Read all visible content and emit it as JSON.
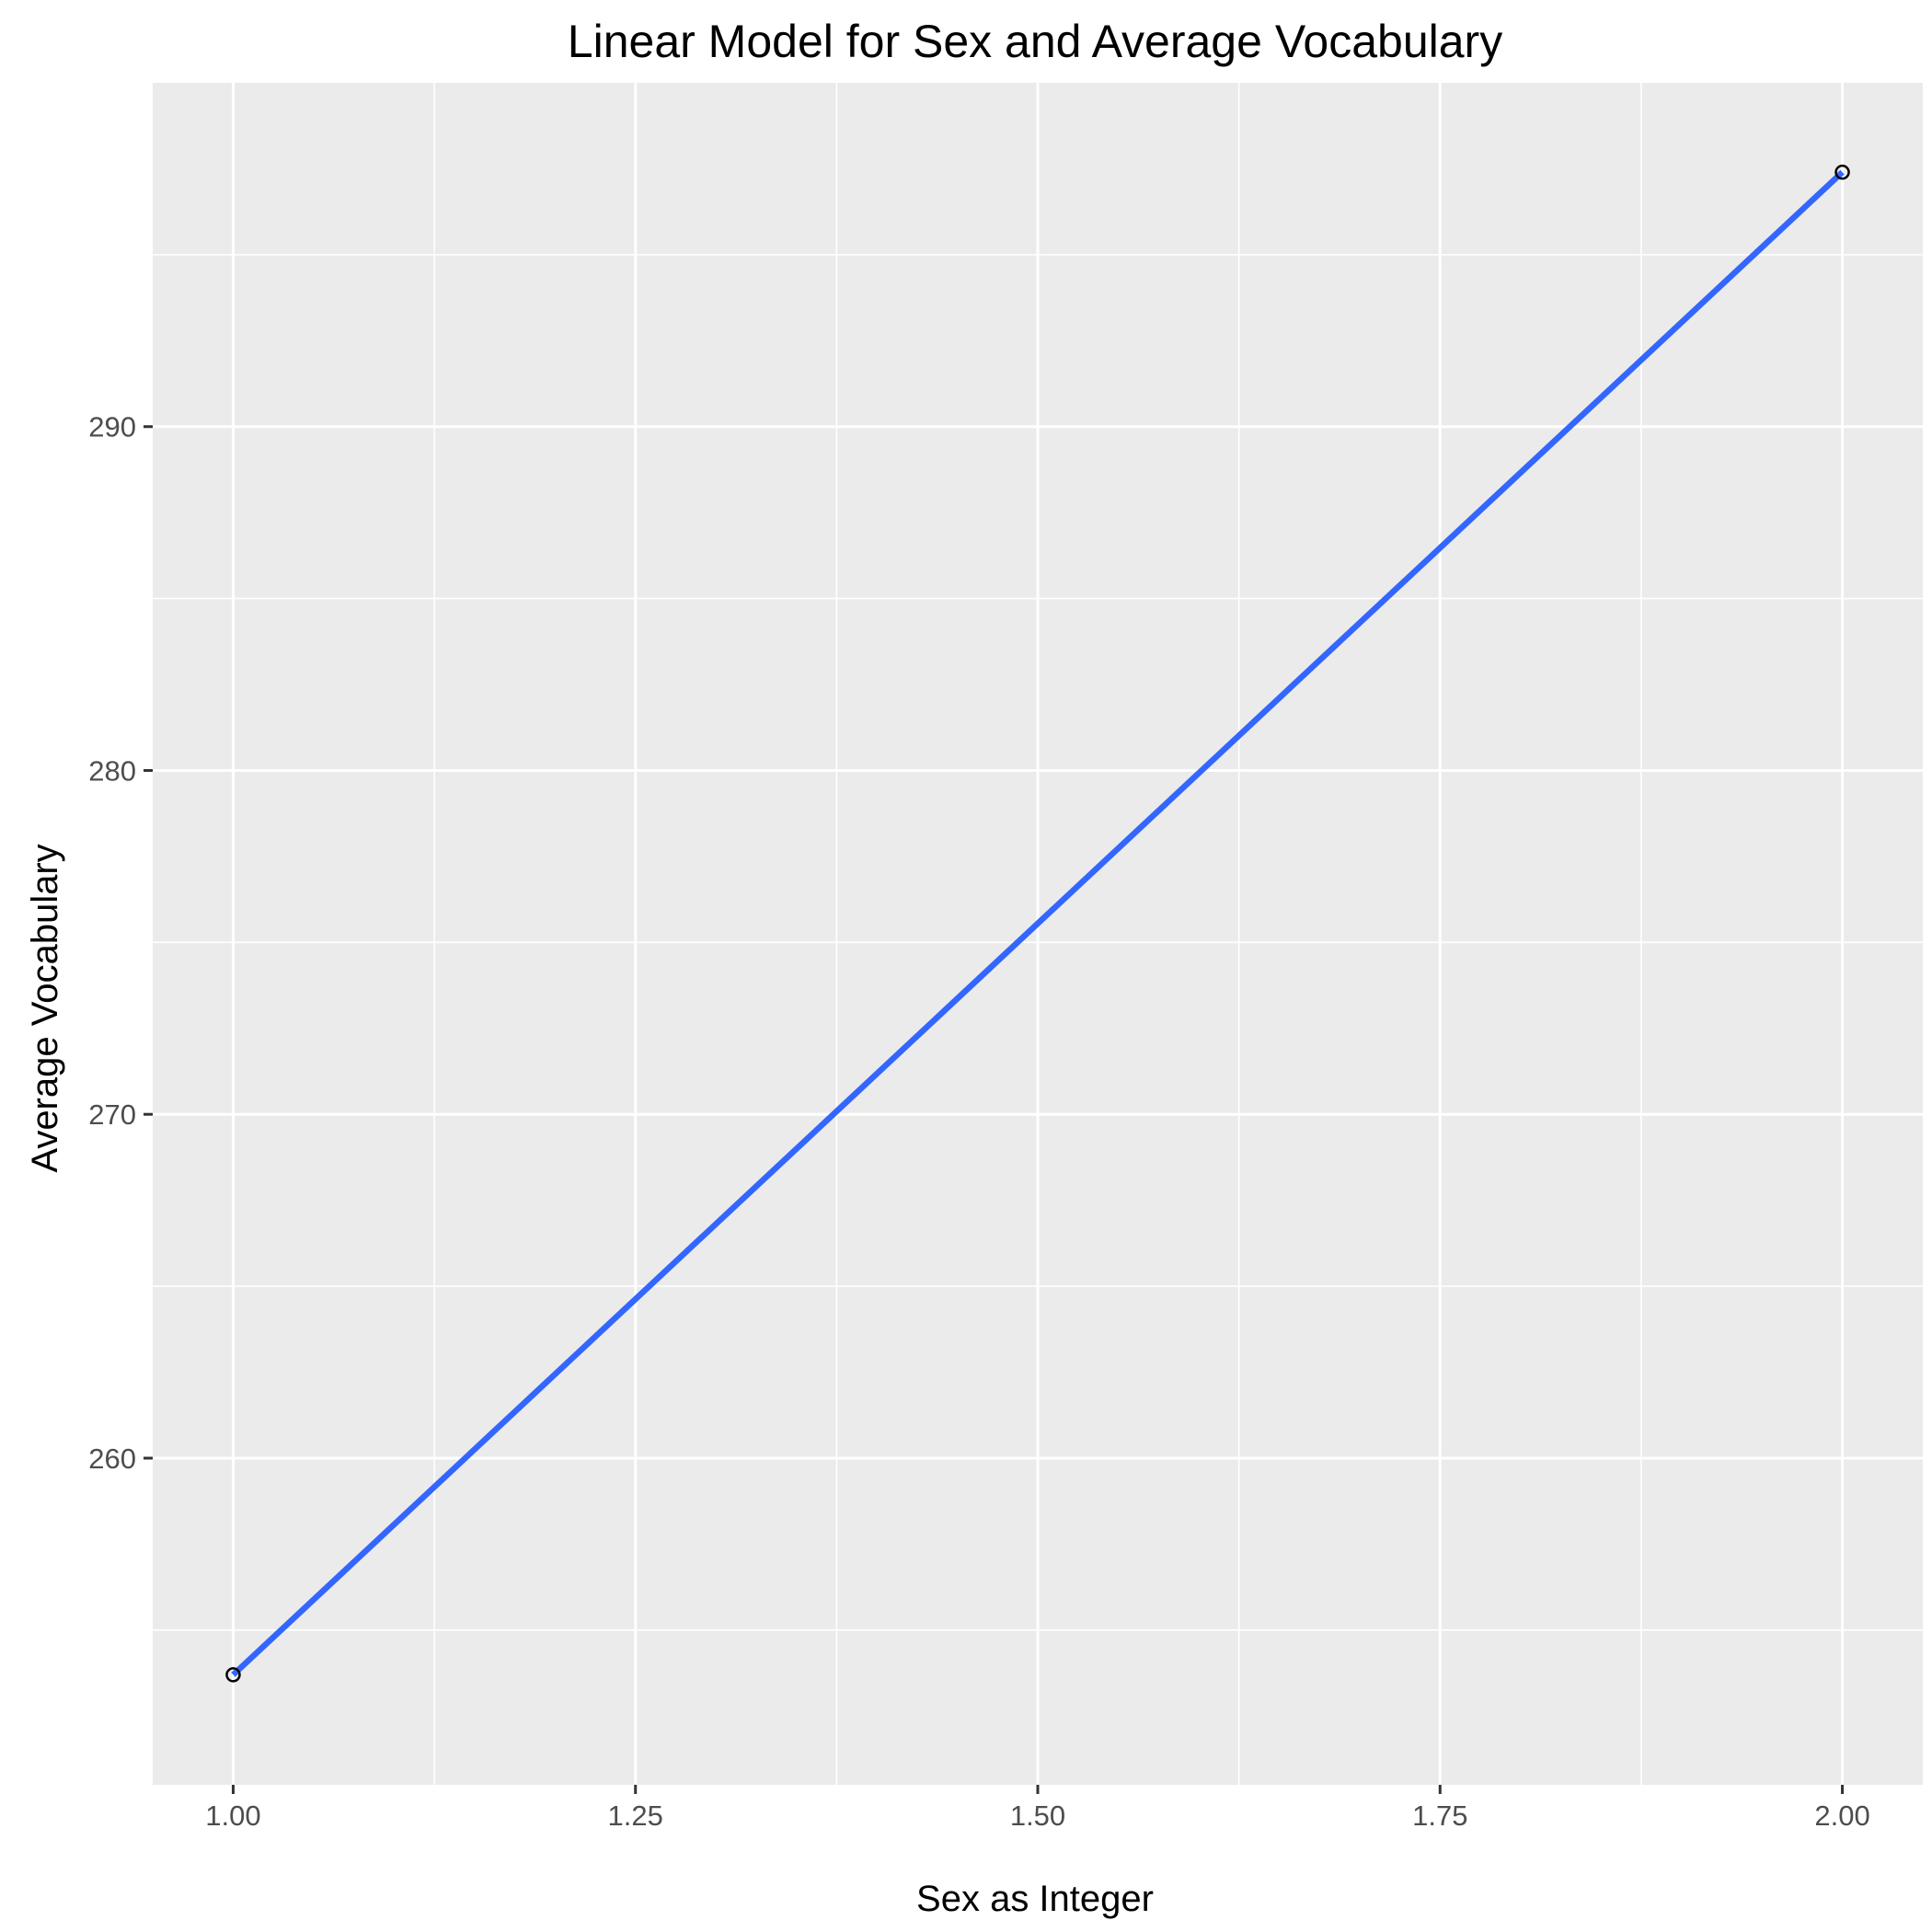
{
  "chart_data": {
    "type": "scatter",
    "title": "Linear Model for Sex and Average Vocabulary",
    "xlabel": "Sex as Integer",
    "ylabel": "Average Vocabulary",
    "xlim": [
      0.95,
      2.05
    ],
    "ylim": [
      250.5,
      300.0
    ],
    "x_ticks": [
      1.0,
      1.25,
      1.5,
      1.75,
      2.0
    ],
    "x_tick_labels": [
      "1.00",
      "1.25",
      "1.50",
      "1.75",
      "2.00"
    ],
    "y_ticks": [
      260,
      270,
      280,
      290
    ],
    "y_tick_labels": [
      "260",
      "270",
      "280",
      "290"
    ],
    "points": [
      {
        "x": 1.0,
        "y": 253.7
      },
      {
        "x": 2.0,
        "y": 297.4
      }
    ],
    "fit_line": {
      "x": [
        1.0,
        2.0
      ],
      "y": [
        253.7,
        297.4
      ]
    },
    "grid": true,
    "legend": "none",
    "colors": {
      "panel_background": "#ebebeb",
      "grid": "#ffffff",
      "line": "#3366ff",
      "point_stroke": "#000000",
      "tick_label": "#4d4d4d",
      "tick_mark": "#333333"
    }
  }
}
